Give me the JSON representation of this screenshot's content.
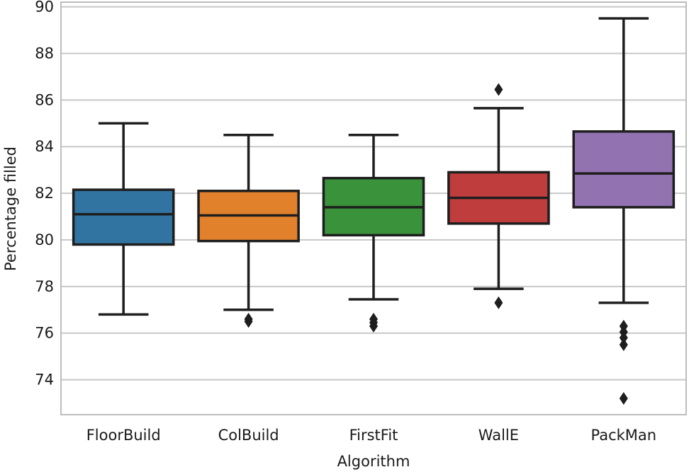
{
  "chart_data": {
    "type": "box",
    "title": "",
    "xlabel": "Algorithm",
    "ylabel": "Percentage filled",
    "ylim": [
      72.5,
      90.2
    ],
    "yticks": [
      74,
      76,
      78,
      80,
      82,
      84,
      86,
      88,
      90
    ],
    "grid": true,
    "categories": [
      "FloorBuild",
      "ColBuild",
      "FirstFit",
      "WallE",
      "PackMan"
    ],
    "colors": [
      "#3274a1",
      "#e1812c",
      "#3a923a",
      "#c03d3e",
      "#9372b2"
    ],
    "boxes": [
      {
        "name": "FloorBuild",
        "whisker_low": 76.8,
        "q1": 79.8,
        "median": 81.1,
        "q3": 82.15,
        "whisker_high": 85.0,
        "outliers": []
      },
      {
        "name": "ColBuild",
        "whisker_low": 77.0,
        "q1": 79.95,
        "median": 81.05,
        "q3": 82.1,
        "whisker_high": 84.5,
        "outliers": [
          76.5,
          76.6
        ]
      },
      {
        "name": "FirstFit",
        "whisker_low": 77.45,
        "q1": 80.2,
        "median": 81.4,
        "q3": 82.65,
        "whisker_high": 84.5,
        "outliers": [
          76.3,
          76.45,
          76.6
        ]
      },
      {
        "name": "WallE",
        "whisker_low": 77.9,
        "q1": 80.7,
        "median": 81.8,
        "q3": 82.9,
        "whisker_high": 85.65,
        "outliers": [
          86.45,
          77.3
        ]
      },
      {
        "name": "PackMan",
        "whisker_low": 77.3,
        "q1": 81.4,
        "median": 82.85,
        "q3": 84.65,
        "whisker_high": 89.5,
        "outliers": [
          76.3,
          76.05,
          75.8,
          75.5,
          73.2
        ]
      }
    ]
  }
}
